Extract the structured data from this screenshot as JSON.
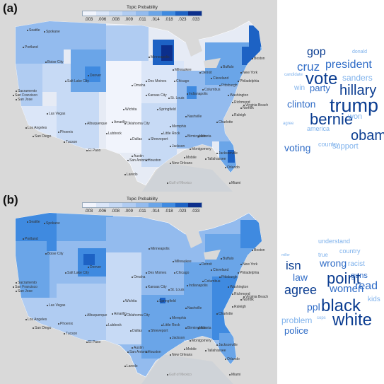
{
  "legend": {
    "title": "Topic Probability",
    "ticks": [
      ".003",
      ".006",
      ".008",
      ".009",
      ".011",
      ".014",
      ".018",
      ".023",
      ".033"
    ],
    "colors": [
      "#f1f4fc",
      "#dbe6f8",
      "#c7daf5",
      "#b0ccf2",
      "#93bbee",
      "#6aa5e8",
      "#3f8ae0",
      "#1d62c4",
      "#0c2f8c"
    ]
  },
  "colors": {
    "land": "#e4e9f3",
    "ocean": "#dcdcdc",
    "text_dark": "#0b3d91",
    "text_mid": "#2f6cc7",
    "text_light": "#7fb2ec"
  },
  "panel_a": {
    "label": "(a)",
    "cities": [
      "Seattle",
      "Spokane",
      "Portland",
      "Boise City",
      "Salt Lake City",
      "Sacramento",
      "San Francisco",
      "San Jose",
      "Las Vegas",
      "Los Angeles",
      "San Diego",
      "Phoenix",
      "Tucson",
      "Albuquerque",
      "El Paso",
      "Denver",
      "Amarillo",
      "Lubbock",
      "Oklahoma City",
      "Wichita",
      "Dallas",
      "Shreveport",
      "Austin",
      "San Antonio",
      "Houston",
      "Laredo",
      "Kansas City",
      "Springfield",
      "St. Louis",
      "Des Moines",
      "Omaha",
      "Minneapolis",
      "Milwaukee",
      "Chicago",
      "Indianapolis",
      "Columbus",
      "Detroit",
      "Cleveland",
      "Pittsburgh",
      "Philadelphia",
      "New York",
      "Boston",
      "Buffalo",
      "Washington",
      "Richmond",
      "Raleigh",
      "Charlotte",
      "Atlanta",
      "Birmingham",
      "Memphis",
      "Nashville",
      "Little Rock",
      "Jackson",
      "Montgomery",
      "Tallahassee",
      "New Orleans",
      "Mobile",
      "Jacksonville",
      "Orlando",
      "Miami",
      "Norfolk",
      "Virginia Beach",
      "Gulf of Mexico"
    ],
    "words": [
      {
        "text": "gop",
        "size": 16,
        "shade": "text_dark",
        "weight": "normal"
      },
      {
        "text": "donald",
        "size": 7,
        "shade": "text_light",
        "weight": "normal"
      },
      {
        "text": "cruz",
        "size": 17,
        "shade": "text_mid",
        "weight": "normal"
      },
      {
        "text": "president",
        "size": 16,
        "shade": "text_mid",
        "weight": "normal"
      },
      {
        "text": "candidate",
        "size": 6,
        "shade": "text_light",
        "weight": "normal"
      },
      {
        "text": "vote",
        "size": 24,
        "shade": "text_dark",
        "weight": "normal"
      },
      {
        "text": "sanders",
        "size": 12,
        "shade": "text_light",
        "weight": "normal"
      },
      {
        "text": "win",
        "size": 10,
        "shade": "text_light",
        "weight": "normal"
      },
      {
        "text": "party",
        "size": 13,
        "shade": "text_mid",
        "weight": "normal"
      },
      {
        "text": "hillary",
        "size": 20,
        "shade": "text_dark",
        "weight": "normal"
      },
      {
        "text": "clinton",
        "size": 14,
        "shade": "text_mid",
        "weight": "normal"
      },
      {
        "text": "trump",
        "size": 27,
        "shade": "text_dark",
        "weight": "normal"
      },
      {
        "text": "bernie",
        "size": 22,
        "shade": "text_dark",
        "weight": "normal"
      },
      {
        "text": "won",
        "size": 11,
        "shade": "text_light",
        "weight": "normal"
      },
      {
        "text": "agree",
        "size": 6,
        "shade": "text_light",
        "weight": "normal"
      },
      {
        "text": "america",
        "size": 9,
        "shade": "text_light",
        "weight": "normal"
      },
      {
        "text": "obama",
        "size": 20,
        "shade": "text_dark",
        "weight": "normal"
      },
      {
        "text": "voting",
        "size": 14,
        "shade": "text_mid",
        "weight": "normal"
      },
      {
        "text": "country",
        "size": 9,
        "shade": "text_light",
        "weight": "normal"
      },
      {
        "text": "support",
        "size": 11,
        "shade": "text_light",
        "weight": "normal"
      }
    ]
  },
  "panel_b": {
    "label": "(b)",
    "cities": [
      "Seattle",
      "Spokane",
      "Portland",
      "Boise City",
      "Salt Lake City",
      "Sacramento",
      "San Francisco",
      "San Jose",
      "Las Vegas",
      "Los Angeles",
      "San Diego",
      "Phoenix",
      "Tucson",
      "Albuquerque",
      "El Paso",
      "Denver",
      "Amarillo",
      "Lubbock",
      "Oklahoma City",
      "Wichita",
      "Dallas",
      "Shreveport",
      "Austin",
      "San Antonio",
      "Houston",
      "Laredo",
      "Kansas City",
      "Springfield",
      "St. Louis",
      "Des Moines",
      "Omaha",
      "Minneapolis",
      "Milwaukee",
      "Chicago",
      "Indianapolis",
      "Columbus",
      "Detroit",
      "Cleveland",
      "Pittsburgh",
      "Philadelphia",
      "New York",
      "Boston",
      "Buffalo",
      "Washington",
      "Richmond",
      "Raleigh",
      "Charlotte",
      "Atlanta",
      "Birmingham",
      "Memphis",
      "Nashville",
      "Little Rock",
      "Jackson",
      "Montgomery",
      "Tallahassee",
      "New Orleans",
      "Mobile",
      "Jacksonville",
      "Orlando",
      "Miami",
      "Norfolk",
      "Virginia Beach",
      "Gulf of Mexico"
    ],
    "words": [
      {
        "text": "understand",
        "size": 9,
        "shade": "text_light",
        "weight": "normal"
      },
      {
        "text": "miller",
        "size": 5,
        "shade": "text_light",
        "weight": "normal"
      },
      {
        "text": "true",
        "size": 8,
        "shade": "text_light",
        "weight": "normal"
      },
      {
        "text": "country",
        "size": 9,
        "shade": "text_light",
        "weight": "normal"
      },
      {
        "text": "racist",
        "size": 10,
        "shade": "text_light",
        "weight": "normal"
      },
      {
        "text": "isn",
        "size": 17,
        "shade": "text_dark",
        "weight": "normal"
      },
      {
        "text": "wrong",
        "size": 14,
        "shade": "text_mid",
        "weight": "normal"
      },
      {
        "text": "guns",
        "size": 11,
        "shade": "text_mid",
        "weight": "normal"
      },
      {
        "text": "law",
        "size": 14,
        "shade": "text_mid",
        "weight": "normal"
      },
      {
        "text": "point",
        "size": 22,
        "shade": "text_dark",
        "weight": "normal"
      },
      {
        "text": "read",
        "size": 16,
        "shade": "text_mid",
        "weight": "normal"
      },
      {
        "text": "agree",
        "size": 18,
        "shade": "text_dark",
        "weight": "normal"
      },
      {
        "text": "women",
        "size": 15,
        "shade": "text_mid",
        "weight": "normal"
      },
      {
        "text": "kids",
        "size": 10,
        "shade": "text_light",
        "weight": "normal"
      },
      {
        "text": "ppl",
        "size": 14,
        "shade": "text_mid",
        "weight": "normal"
      },
      {
        "text": "black",
        "size": 24,
        "shade": "text_dark",
        "weight": "normal"
      },
      {
        "text": "problem",
        "size": 12,
        "shade": "text_light",
        "weight": "normal"
      },
      {
        "text": "cops",
        "size": 6,
        "shade": "text_light",
        "weight": "normal"
      },
      {
        "text": "white",
        "size": 24,
        "shade": "text_dark",
        "weight": "normal"
      },
      {
        "text": "police",
        "size": 13,
        "shade": "text_mid",
        "weight": "normal"
      }
    ]
  }
}
